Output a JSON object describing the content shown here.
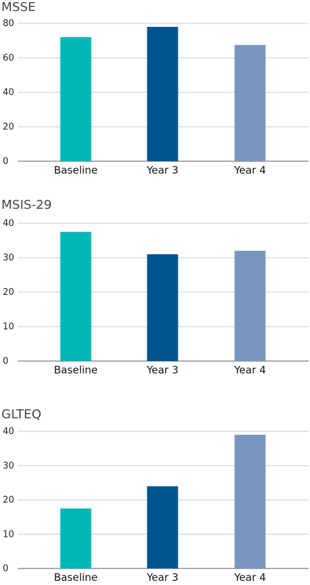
{
  "colors": {
    "baseline": "#00b7b7",
    "year3": "#00558e",
    "year4": "#7896bd",
    "grid": "#c8c8c8"
  },
  "chart_data": [
    {
      "type": "bar",
      "title": "MSSE",
      "categories": [
        "Baseline",
        "Year 3",
        "Year 4"
      ],
      "values": [
        72,
        78,
        67.5
      ],
      "ylim": [
        0,
        80
      ],
      "yticks": [
        "0",
        "20",
        "40",
        "60",
        "80"
      ],
      "grid": true
    },
    {
      "type": "bar",
      "title": "MSIS-29",
      "categories": [
        "Baseline",
        "Year 3",
        "Year 4"
      ],
      "values": [
        37.5,
        31,
        32
      ],
      "ylim": [
        0,
        40
      ],
      "yticks": [
        "0",
        "10",
        "20",
        "30",
        "40"
      ],
      "grid": true
    },
    {
      "type": "bar",
      "title": "GLTEQ",
      "categories": [
        "Baseline",
        "Year 3",
        "Year 4"
      ],
      "values": [
        17.5,
        24,
        39
      ],
      "ylim": [
        0,
        40
      ],
      "yticks": [
        "0",
        "10",
        "20",
        "30",
        "40"
      ],
      "grid": true
    }
  ]
}
